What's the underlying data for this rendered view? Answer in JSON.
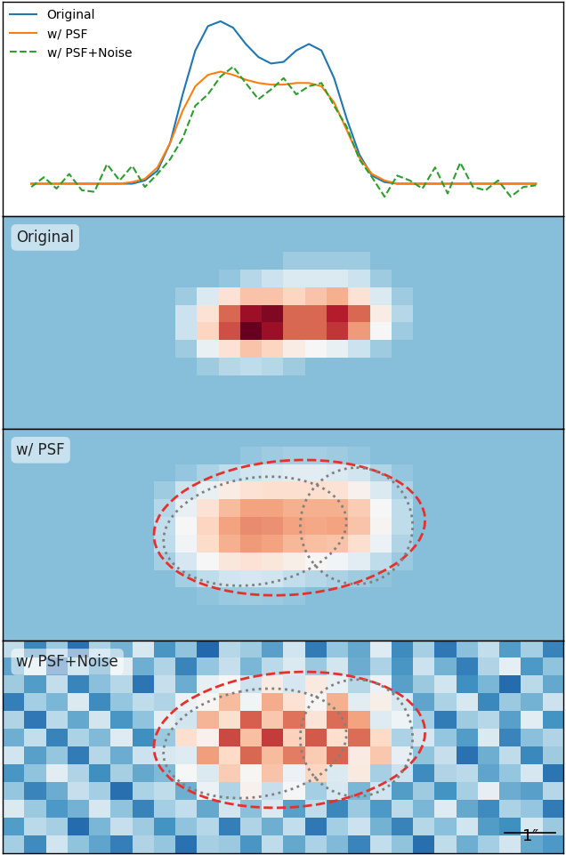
{
  "chart_data": [
    {
      "type": "line",
      "legend": "upper left",
      "tick_labels": false,
      "xlim": [
        -2.3,
        42.2
      ],
      "ylim": [
        -0.2,
        1.12
      ],
      "xticks": [],
      "yticks": [],
      "x": [
        0,
        1,
        2,
        3,
        4,
        5,
        6,
        7,
        8,
        9,
        10,
        11,
        12,
        13,
        14,
        15,
        16,
        17,
        18,
        19,
        20,
        21,
        22,
        23,
        24,
        25,
        26,
        27,
        28,
        29,
        30,
        31,
        32,
        33,
        34,
        35,
        36,
        37,
        38,
        39,
        40
      ],
      "series": [
        {
          "name": "Original",
          "color": "#1f77b4",
          "line_style": "solid",
          "values": [
            0,
            0,
            0,
            0,
            0,
            0,
            0,
            0,
            0,
            0.02,
            0.08,
            0.25,
            0.55,
            0.82,
            0.97,
            1.0,
            0.96,
            0.86,
            0.78,
            0.74,
            0.75,
            0.82,
            0.86,
            0.82,
            0.65,
            0.4,
            0.18,
            0.05,
            0.01,
            0,
            0,
            0,
            0,
            0,
            0,
            0,
            0,
            0,
            0,
            0,
            0
          ]
        },
        {
          "name": "w/ PSF",
          "color": "#ff7f0e",
          "line_style": "solid",
          "values": [
            0,
            0,
            0,
            0,
            0,
            0,
            0,
            0,
            0.01,
            0.03,
            0.1,
            0.25,
            0.45,
            0.6,
            0.67,
            0.69,
            0.67,
            0.64,
            0.62,
            0.61,
            0.61,
            0.62,
            0.62,
            0.6,
            0.5,
            0.33,
            0.16,
            0.06,
            0.02,
            0,
            0,
            0,
            0,
            0,
            0,
            0,
            0,
            0,
            0,
            0,
            0
          ]
        },
        {
          "name": "w/ PSF+Noise",
          "color": "#2ca02c",
          "line_style": "dashed",
          "values": [
            -0.02,
            0.04,
            -0.03,
            0.06,
            -0.04,
            -0.05,
            0.12,
            0.02,
            0.11,
            -0.02,
            0.06,
            0.15,
            0.28,
            0.48,
            0.55,
            0.66,
            0.72,
            0.62,
            0.52,
            0.58,
            0.65,
            0.55,
            0.6,
            0.62,
            0.48,
            0.35,
            0.15,
            0.04,
            -0.08,
            0.05,
            0.02,
            -0.03,
            0.1,
            -0.06,
            0.13,
            -0.02,
            -0.04,
            0.02,
            -0.08,
            -0.02,
            -0.01
          ]
        }
      ]
    },
    {
      "type": "heatmap",
      "title": "Original",
      "color": "RdBu_r",
      "tick_labels": false,
      "color_range": [
        -4,
        10
      ],
      "cells": [
        [
          0,
          0,
          0,
          0,
          0,
          0,
          0,
          0,
          0,
          0,
          0,
          0,
          0,
          0,
          0,
          0,
          0,
          0,
          0,
          0,
          0,
          0,
          0,
          0,
          0,
          0
        ],
        [
          0,
          0,
          0,
          0,
          0,
          0,
          0,
          0,
          0,
          0,
          0,
          0,
          0,
          0,
          0,
          0,
          0,
          0,
          0,
          0,
          0,
          0,
          0,
          0,
          0,
          0
        ],
        [
          0,
          0,
          0,
          0,
          0,
          0,
          0,
          0,
          0,
          0,
          0,
          0,
          0,
          0.5,
          0.5,
          0.5,
          0.5,
          0,
          0,
          0,
          0,
          0,
          0,
          0,
          0,
          0
        ],
        [
          0,
          0,
          0,
          0,
          0,
          0,
          0,
          0,
          0,
          0,
          0.3,
          1,
          1.5,
          2,
          2,
          2,
          1.5,
          0.5,
          0,
          0,
          0,
          0,
          0,
          0,
          0,
          0
        ],
        [
          0,
          0,
          0,
          0,
          0,
          0,
          0,
          0,
          0.5,
          2,
          4,
          5,
          5,
          4.5,
          5,
          5.5,
          4,
          2,
          0.5,
          0,
          0,
          0,
          0,
          0,
          0,
          0
        ],
        [
          0,
          0,
          0,
          0,
          0,
          0,
          0,
          0,
          1.5,
          4,
          7,
          9,
          9.5,
          7,
          7,
          8.5,
          7,
          3.5,
          1,
          0,
          0,
          0,
          0,
          0,
          0,
          0
        ],
        [
          0,
          0,
          0,
          0,
          0,
          0,
          0,
          0,
          1.5,
          4.5,
          7.5,
          10,
          9,
          7,
          7,
          8,
          6,
          3,
          0.5,
          0,
          0,
          0,
          0,
          0,
          0,
          0
        ],
        [
          0,
          0,
          0,
          0,
          0,
          0,
          0,
          0,
          0.5,
          2.5,
          4,
          5,
          4.5,
          3.5,
          3,
          2.5,
          1.5,
          0.5,
          0,
          0,
          0,
          0,
          0,
          0,
          0,
          0
        ],
        [
          0,
          0,
          0,
          0,
          0,
          0,
          0,
          0,
          0,
          0.5,
          1,
          1.2,
          1,
          0.5,
          0,
          0,
          0,
          0,
          0,
          0,
          0,
          0,
          0,
          0,
          0,
          0
        ],
        [
          0,
          0,
          0,
          0,
          0,
          0,
          0,
          0,
          0,
          0,
          0,
          0,
          0,
          0,
          0,
          0,
          0,
          0,
          0,
          0,
          0,
          0,
          0,
          0,
          0,
          0
        ],
        [
          0,
          0,
          0,
          0,
          0,
          0,
          0,
          0,
          0,
          0,
          0,
          0,
          0,
          0,
          0,
          0,
          0,
          0,
          0,
          0,
          0,
          0,
          0,
          0,
          0,
          0
        ],
        [
          0,
          0,
          0,
          0,
          0,
          0,
          0,
          0,
          0,
          0,
          0,
          0,
          0,
          0,
          0,
          0,
          0,
          0,
          0,
          0,
          0,
          0,
          0,
          0,
          0,
          0
        ]
      ]
    },
    {
      "type": "heatmap",
      "title": "w/ PSF",
      "color": "RdBu_r",
      "tick_labels": false,
      "color_range": [
        -4,
        10
      ],
      "cells": [
        [
          0,
          0,
          0,
          0,
          0,
          0,
          0,
          0,
          0,
          0,
          0,
          0,
          0,
          0,
          0,
          0,
          0,
          0,
          0,
          0,
          0,
          0,
          0,
          0,
          0,
          0
        ],
        [
          0,
          0,
          0,
          0,
          0,
          0,
          0,
          0,
          0,
          0,
          0,
          0.3,
          0.5,
          0.6,
          0.6,
          0.5,
          0.3,
          0,
          0,
          0,
          0,
          0,
          0,
          0,
          0,
          0
        ],
        [
          0,
          0,
          0,
          0,
          0,
          0,
          0,
          0,
          0.3,
          0.8,
          1.2,
          1.6,
          2,
          2.2,
          2.2,
          2,
          1.6,
          0.9,
          0.3,
          0,
          0,
          0,
          0,
          0,
          0,
          0
        ],
        [
          0,
          0,
          0,
          0,
          0,
          0,
          0,
          0.5,
          1.5,
          2.5,
          3.5,
          4,
          4.2,
          4.2,
          4.2,
          4,
          3.3,
          2,
          0.8,
          0,
          0,
          0,
          0,
          0,
          0,
          0
        ],
        [
          0,
          0,
          0,
          0,
          0,
          0,
          0,
          1,
          2.5,
          4,
          5.2,
          5.8,
          5.8,
          5.5,
          5.5,
          5.5,
          4.8,
          3,
          1.2,
          0,
          0,
          0,
          0,
          0,
          0,
          0
        ],
        [
          0,
          0,
          0,
          0,
          0,
          0,
          0,
          1.3,
          3,
          4.5,
          5.8,
          6.3,
          6.2,
          5.8,
          5.7,
          5.8,
          5,
          3.2,
          1.2,
          0,
          0,
          0,
          0,
          0,
          0,
          0
        ],
        [
          0,
          0,
          0,
          0,
          0,
          0,
          0,
          1.2,
          2.8,
          4.3,
          5.5,
          6,
          5.8,
          5.3,
          5.1,
          5,
          4.2,
          2.6,
          0.9,
          0,
          0,
          0,
          0,
          0,
          0,
          0
        ],
        [
          0,
          0,
          0,
          0,
          0,
          0,
          0,
          0.7,
          1.8,
          3,
          3.8,
          4,
          3.8,
          3.4,
          3.1,
          2.8,
          2.2,
          1.2,
          0.4,
          0,
          0,
          0,
          0,
          0,
          0,
          0
        ],
        [
          0,
          0,
          0,
          0,
          0,
          0,
          0,
          0,
          0.6,
          1.2,
          1.6,
          1.8,
          1.6,
          1.3,
          1,
          0.8,
          0.5,
          0.2,
          0,
          0,
          0,
          0,
          0,
          0,
          0,
          0
        ],
        [
          0,
          0,
          0,
          0,
          0,
          0,
          0,
          0,
          0,
          0.2,
          0.4,
          0.5,
          0.4,
          0.3,
          0,
          0,
          0,
          0,
          0,
          0,
          0,
          0,
          0,
          0,
          0,
          0
        ],
        [
          0,
          0,
          0,
          0,
          0,
          0,
          0,
          0,
          0,
          0,
          0,
          0,
          0,
          0,
          0,
          0,
          0,
          0,
          0,
          0,
          0,
          0,
          0,
          0,
          0,
          0
        ],
        [
          0,
          0,
          0,
          0,
          0,
          0,
          0,
          0,
          0,
          0,
          0,
          0,
          0,
          0,
          0,
          0,
          0,
          0,
          0,
          0,
          0,
          0,
          0,
          0,
          0,
          0
        ]
      ]
    },
    {
      "type": "heatmap",
      "title": "w/ PSF+Noise",
      "color": "RdBu_r",
      "tick_labels": false,
      "color_range": [
        -4,
        10
      ],
      "annotations": [
        "1″"
      ],
      "cells": [
        [
          1.2,
          -1.5,
          0.4,
          -2.2,
          0.8,
          -0.3,
          1.9,
          -1.1,
          0.2,
          -2.5,
          1.0,
          0.5,
          -0.8,
          1.6,
          -1.9,
          0.3,
          -0.6,
          2.1,
          -1.4,
          0.7,
          -2.0,
          0.1,
          1.3,
          -0.9,
          0.6,
          -1.7
        ],
        [
          -0.7,
          1.8,
          -2.3,
          0.5,
          -1.2,
          2.2,
          -0.4,
          0.9,
          -1.6,
          0.3,
          1.4,
          -0.2,
          1.1,
          2.0,
          0.4,
          1.7,
          -0.5,
          0.8,
          -1.1,
          1.5,
          -0.3,
          -1.8,
          0.9,
          2.3,
          -1.0,
          0.2
        ],
        [
          0.5,
          -0.9,
          1.3,
          -1.6,
          0.1,
          1.0,
          -2.1,
          1.4,
          -0.5,
          2.4,
          3.0,
          1.5,
          3.6,
          1.8,
          3.7,
          2.5,
          1.0,
          2.6,
          -0.8,
          0.4,
          1.6,
          -1.3,
          -0.2,
          -2.4,
          1.1,
          -0.6
        ],
        [
          -1.8,
          0.6,
          -0.2,
          2.0,
          -1.4,
          0.3,
          1.2,
          0.9,
          2.6,
          3.1,
          5.2,
          2.8,
          5.6,
          4.0,
          3.1,
          5.5,
          2.2,
          3.4,
          1.9,
          -0.7,
          0.8,
          1.9,
          -1.5,
          0.4,
          -0.3,
          1.5
        ],
        [
          0.9,
          -2.0,
          1.1,
          -0.6,
          1.7,
          -1.1,
          0.2,
          2.3,
          1.6,
          5.4,
          4.1,
          7.2,
          4.9,
          6.8,
          3.9,
          6.9,
          5.8,
          2.1,
          2.7,
          0.6,
          -1.9,
          0.5,
          1.0,
          -0.8,
          2.2,
          -1.2
        ],
        [
          -0.4,
          1.3,
          -1.7,
          0.8,
          -0.1,
          2.1,
          -1.3,
          0.4,
          4.2,
          3.3,
          7.6,
          5.1,
          7.9,
          4.6,
          7.3,
          4.2,
          6.9,
          4.4,
          0.8,
          1.8,
          0.3,
          -0.9,
          2.0,
          -1.6,
          0.1,
          0.9
        ],
        [
          1.6,
          -0.8,
          0.3,
          -1.9,
          1.0,
          -0.5,
          1.5,
          1.9,
          2.1,
          5.9,
          4.4,
          7.0,
          5.2,
          6.6,
          4.8,
          7.1,
          3.6,
          4.9,
          2.4,
          0.2,
          1.4,
          -2.2,
          -0.4,
          1.2,
          -1.5,
          0.5
        ],
        [
          -1.1,
          0.2,
          2.2,
          0.9,
          -1.3,
          0.7,
          -0.6,
          -0.1,
          3.0,
          2.0,
          4.8,
          3.1,
          5.0,
          2.6,
          4.5,
          2.0,
          3.7,
          0.7,
          1.5,
          -1.4,
          0.9,
          1.1,
          -0.7,
          0.3,
          1.8,
          -2.1
        ],
        [
          0.3,
          -1.6,
          -0.5,
          1.4,
          0.6,
          -2.3,
          0.8,
          1.2,
          -0.4,
          2.6,
          0.9,
          3.3,
          1.4,
          2.9,
          0.6,
          1.9,
          -0.2,
          1.6,
          -0.9,
          0.5,
          -1.2,
          0.7,
          2.4,
          -0.5,
          -0.8,
          1.0
        ],
        [
          2.0,
          0.4,
          -1.0,
          -0.3,
          1.8,
          0.2,
          -1.7,
          0.6,
          1.3,
          -0.6,
          1.7,
          0.1,
          2.0,
          -0.8,
          1.2,
          -1.5,
          0.4,
          -1.0,
          1.1,
          -0.2,
          2.1,
          -0.6,
          -1.4,
          0.8,
          0.3,
          -1.9
        ],
        [
          -0.9,
          1.1,
          0.7,
          -2.4,
          -0.2,
          1.4,
          0.5,
          -1.2,
          0.2,
          1.0,
          -1.8,
          0.9,
          -0.4,
          1.3,
          -2.0,
          0.6,
          1.5,
          -0.3,
          -1.7,
          1.0,
          0.1,
          1.6,
          -0.9,
          -1.3,
          1.9,
          0.4
        ],
        [
          0.6,
          -1.4,
          1.6,
          0.2,
          -0.7,
          -1.8,
          0.9,
          0.3,
          -2.2,
          0.7,
          0.4,
          -1.1,
          1.2,
          -0.6,
          0.8,
          -0.1,
          -1.6,
          1.3,
          0.2,
          -2.3,
          1.2,
          -0.4,
          0.6,
          1.7,
          -0.6,
          -1.0
        ]
      ]
    }
  ]
}
